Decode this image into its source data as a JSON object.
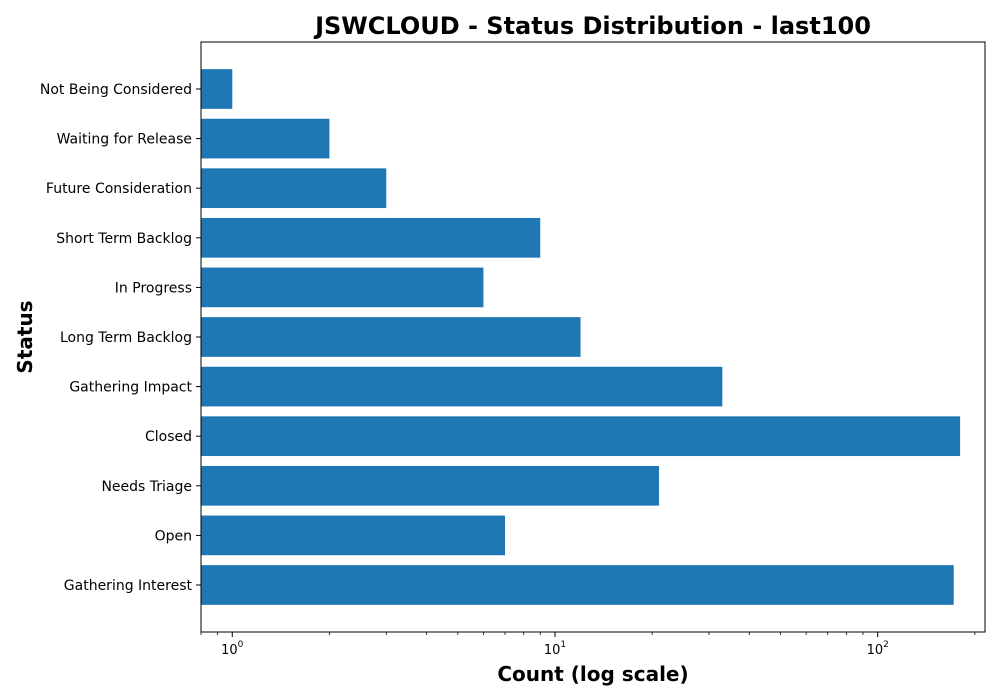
{
  "chart_data": {
    "type": "bar",
    "orientation": "horizontal",
    "title": "JSWCLOUD - Status Distribution - last100",
    "xlabel": "Count (log scale)",
    "ylabel": "Status",
    "xscale": "log",
    "xlim": [
      0.8,
      215
    ],
    "grid": false,
    "bar_color": "#1f77b4",
    "categories": [
      "Gathering Interest",
      "Open",
      "Needs Triage",
      "Closed",
      "Gathering Impact",
      "Long Term Backlog",
      "In Progress",
      "Short Term Backlog",
      "Future Consideration",
      "Waiting for Release",
      "Not Being Considered"
    ],
    "values": [
      172,
      7,
      21,
      180,
      33,
      12,
      6,
      9,
      3,
      2,
      1
    ],
    "xticks": [
      {
        "base": "10",
        "exp": "0",
        "value": 1
      },
      {
        "base": "10",
        "exp": "1",
        "value": 10
      },
      {
        "base": "10",
        "exp": "2",
        "value": 100
      }
    ]
  }
}
